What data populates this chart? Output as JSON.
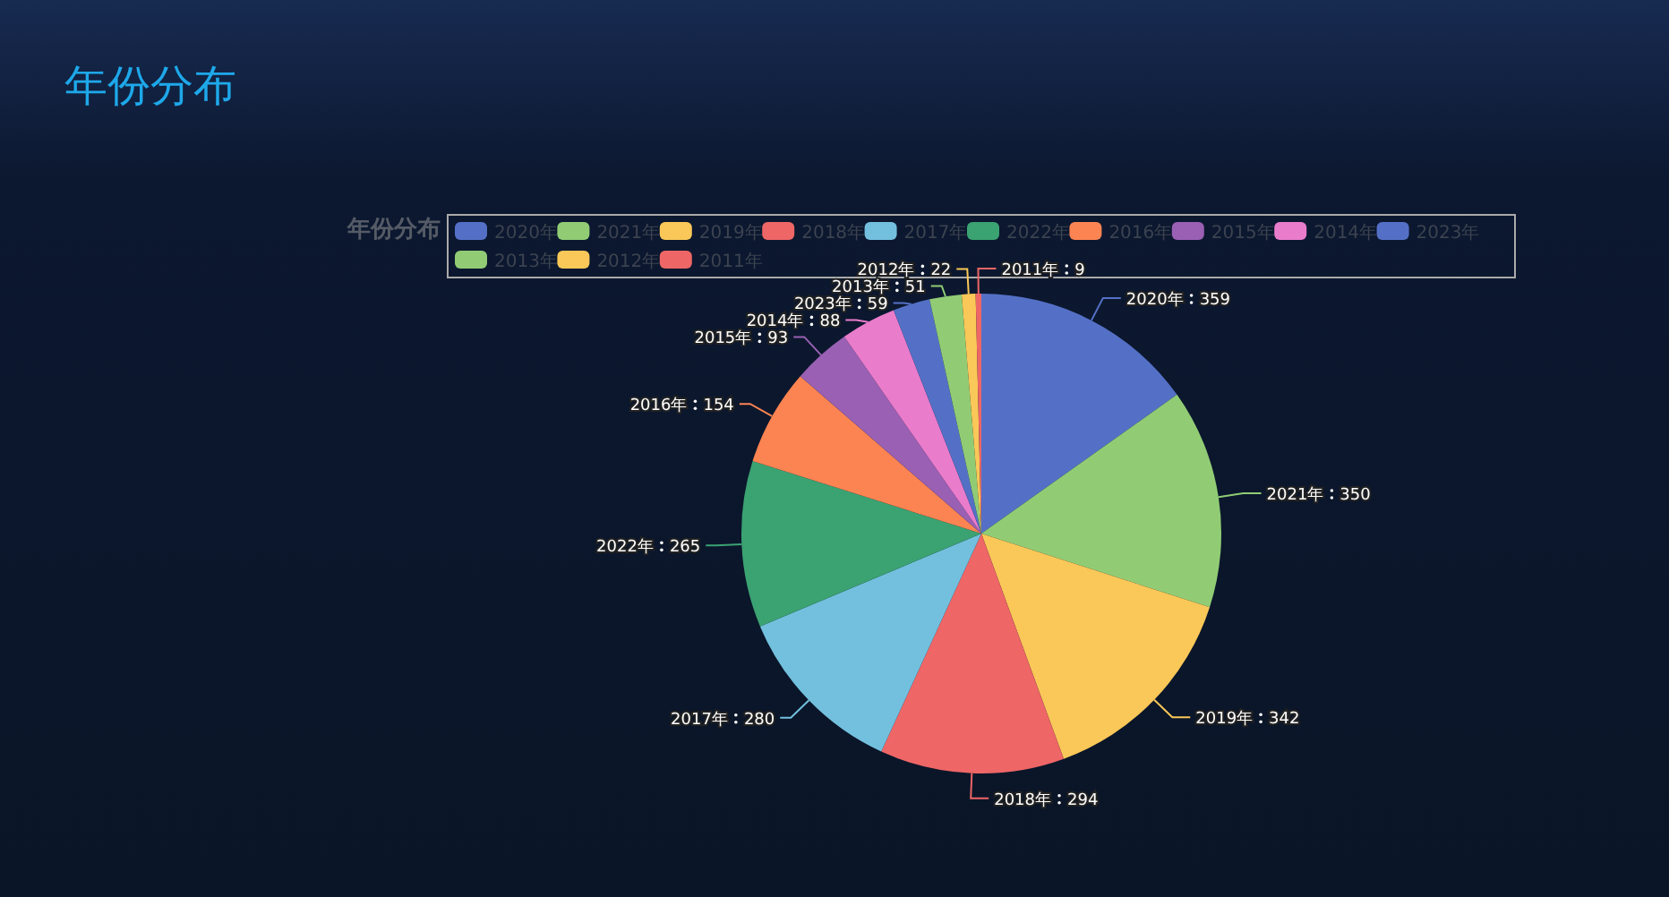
{
  "chart_data": {
    "type": "pie",
    "title": "年份分布",
    "subtitle": "年份分布",
    "categories": [
      "2020年",
      "2021年",
      "2019年",
      "2018年",
      "2017年",
      "2022年",
      "2016年",
      "2015年",
      "2014年",
      "2023年",
      "2013年",
      "2012年",
      "2011年"
    ],
    "values": [
      359,
      350,
      342,
      294,
      280,
      265,
      154,
      93,
      88,
      59,
      51,
      22,
      9
    ],
    "colors": [
      "#5470c6",
      "#91cc75",
      "#fac858",
      "#ee6666",
      "#73c0de",
      "#3ba272",
      "#fc8452",
      "#9a60b4",
      "#ea7ccc",
      "#5470c6",
      "#91cc75",
      "#fac858",
      "#ee6666"
    ],
    "legend": "top",
    "data_labels": true
  }
}
